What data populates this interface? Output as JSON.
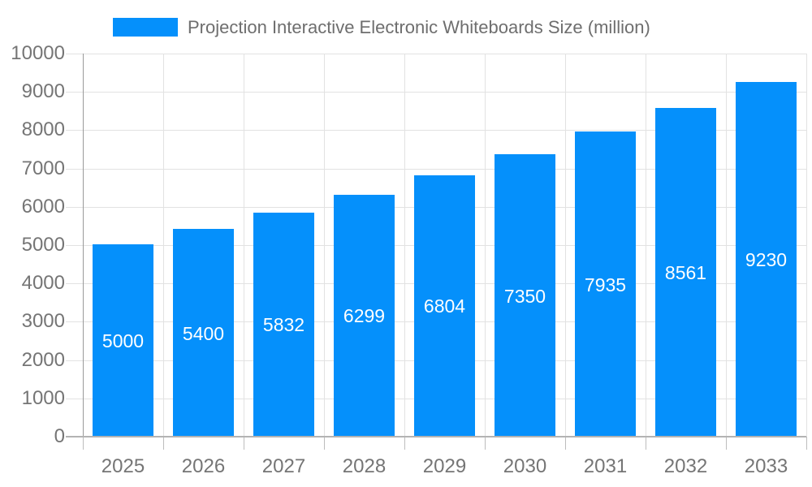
{
  "legend": {
    "label": "Projection Interactive Electronic Whiteboards Size (million)",
    "swatch_color": "#0590fb"
  },
  "chart_data": {
    "type": "bar",
    "title": "Projection Interactive Electronic Whiteboards Size (million)",
    "categories": [
      "2025",
      "2026",
      "2027",
      "2028",
      "2029",
      "2030",
      "2031",
      "2032",
      "2033"
    ],
    "values": [
      5000,
      5400,
      5832,
      6299,
      6804,
      7350,
      7935,
      8561,
      9230
    ],
    "xlabel": "",
    "ylabel": "",
    "ylim": [
      0,
      10000
    ],
    "ytick_step": 1000,
    "yticks": [
      0,
      1000,
      2000,
      3000,
      4000,
      5000,
      6000,
      7000,
      8000,
      9000,
      10000
    ],
    "grid": true,
    "legend_position": "top",
    "colors": {
      "bar": "#0590fb",
      "value_label": "#ffffff",
      "axis_text": "#757575",
      "title_text": "#6e6e6e",
      "gridline": "#e2e2e2",
      "axis_line": "#9a9a9a",
      "baseline": "#b3b3b3",
      "background": "#ffffff"
    }
  }
}
